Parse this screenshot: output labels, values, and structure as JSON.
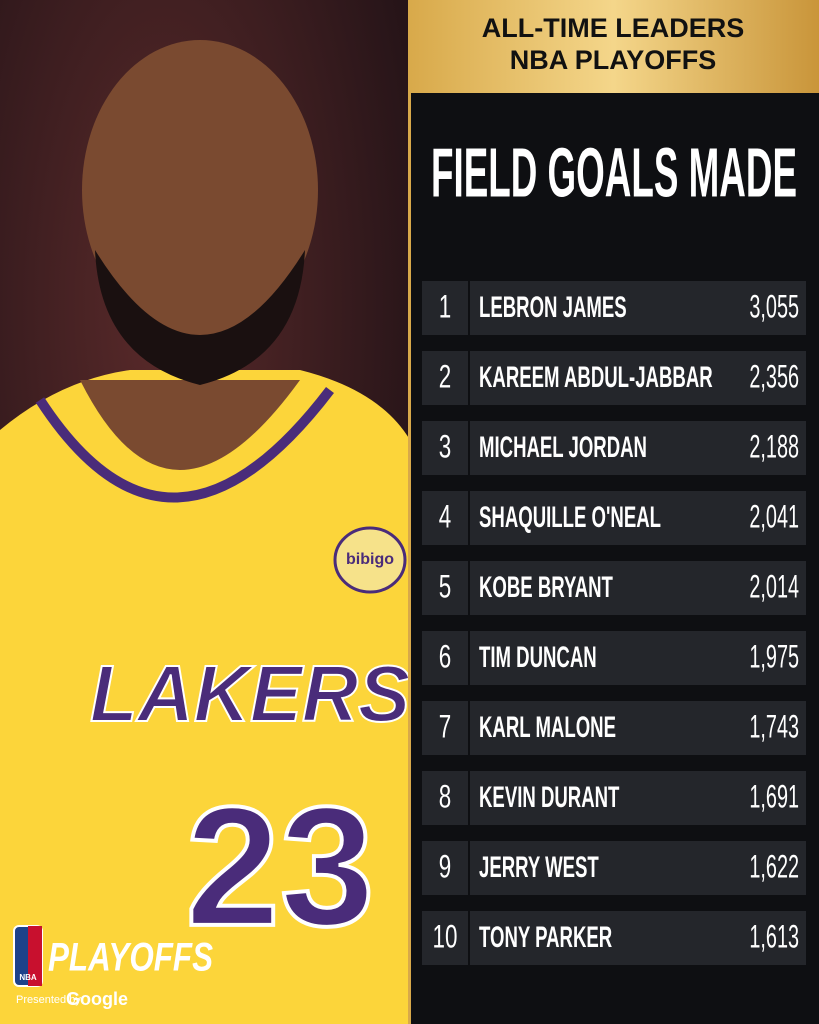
{
  "header": {
    "line1": "ALL-TIME LEADERS",
    "line2": "NBA PLAYOFFS"
  },
  "title": "FIELD GOALS MADE",
  "table": {
    "rows": [
      [
        1,
        "LEBRON JAMES",
        "3,055"
      ],
      [
        2,
        "KAREEM ABDUL-JABBAR",
        "2,356"
      ],
      [
        3,
        "MICHAEL JORDAN",
        "2,188"
      ],
      [
        4,
        "SHAQUILLE O'NEAL",
        "2,041"
      ],
      [
        5,
        "KOBE BRYANT",
        "2,014"
      ],
      [
        6,
        "TIM DUNCAN",
        "1,975"
      ],
      [
        7,
        "KARL MALONE",
        "1,743"
      ],
      [
        8,
        "KEVIN DURANT",
        "1,691"
      ],
      [
        9,
        "JERRY WEST",
        "1,622"
      ],
      [
        10,
        "TONY PARKER",
        "1,613"
      ]
    ]
  },
  "jersey": {
    "team": "LAKERS",
    "number": "23",
    "sponsor": "bibigo"
  },
  "logo": {
    "league": "NBA",
    "event": "PLAYOFFS",
    "presented": "Presented by",
    "sponsor": "Google"
  }
}
